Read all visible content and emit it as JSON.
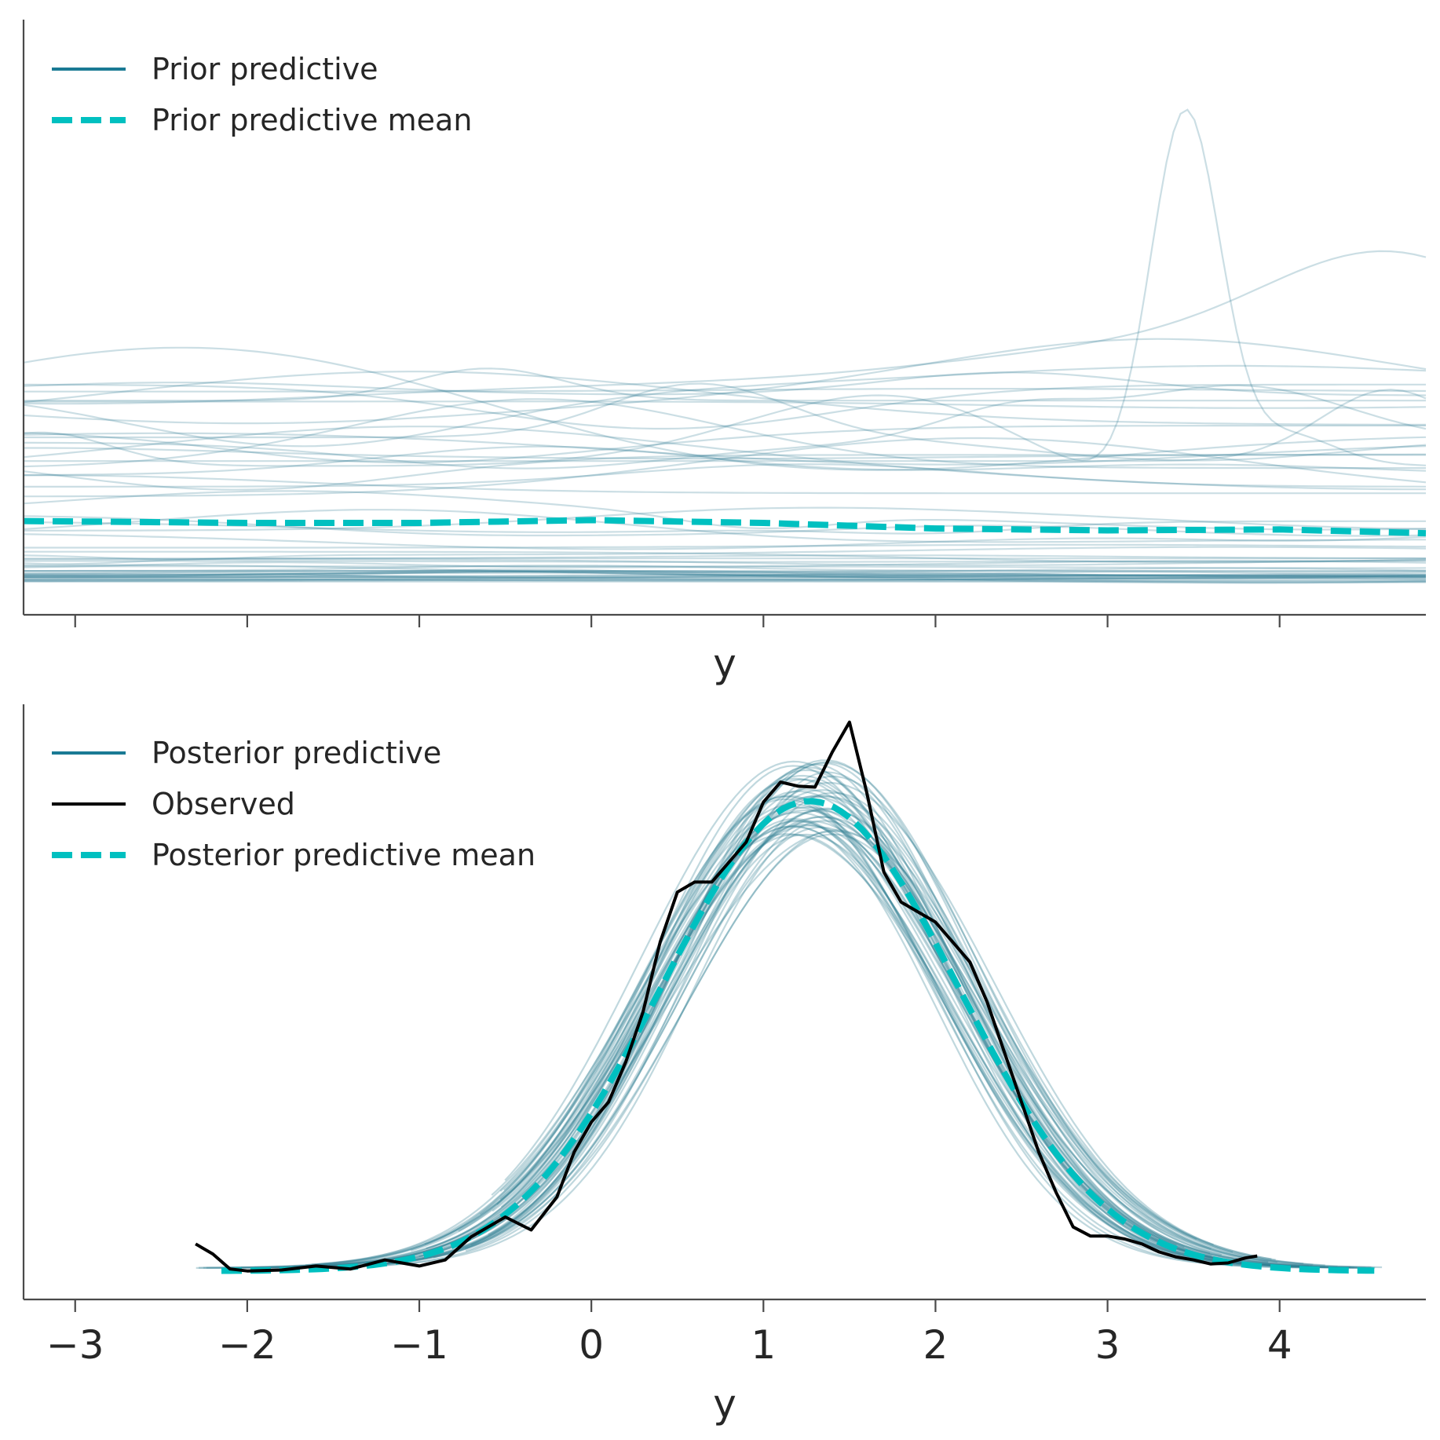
{
  "chart_data": [
    {
      "type": "line",
      "title": "",
      "xlabel": "y",
      "ylabel": "",
      "xlim": [
        -3.3,
        4.85
      ],
      "ylim": [
        0,
        3.0
      ],
      "xticks": [
        -3,
        -2,
        -1,
        0,
        1,
        2,
        3,
        4
      ],
      "show_tick_labels": false,
      "legend": {
        "placement": "top-left",
        "entries": [
          {
            "label": "Prior predictive",
            "style": "solid",
            "color": "#1a7a94"
          },
          {
            "label": "Prior predictive mean",
            "style": "dashed",
            "color": "#00c0c0"
          }
        ]
      },
      "series": [
        {
          "name": "Prior predictive mean",
          "x": [
            -3.3,
            -2,
            -1,
            0,
            1,
            2,
            3,
            4,
            4.85
          ],
          "y": [
            0.355,
            0.345,
            0.345,
            0.36,
            0.345,
            0.315,
            0.305,
            0.31,
            0.29
          ]
        }
      ],
      "samples": {
        "name": "Prior predictive",
        "count": 60,
        "note": "individual prior predictive density draws"
      }
    },
    {
      "type": "line",
      "title": "",
      "xlabel": "y",
      "ylabel": "",
      "xlim": [
        -3.3,
        4.85
      ],
      "ylim": [
        0,
        0.56
      ],
      "xticks": [
        -3,
        -2,
        -1,
        0,
        1,
        2,
        3,
        4
      ],
      "xtick_labels": [
        "−3",
        "−2",
        "−1",
        "0",
        "1",
        "2",
        "3",
        "4"
      ],
      "show_tick_labels": true,
      "legend": {
        "placement": "top-left",
        "entries": [
          {
            "label": "Posterior predictive",
            "style": "solid",
            "color": "#1a7a94"
          },
          {
            "label": "Observed",
            "style": "solid",
            "color": "#000000"
          },
          {
            "label": "Posterior predictive mean",
            "style": "dashed",
            "color": "#00c0c0"
          }
        ]
      },
      "series": [
        {
          "name": "Observed",
          "x": [
            -2.3,
            -2.2,
            -2.1,
            -2.0,
            -1.8,
            -1.6,
            -1.4,
            -1.2,
            -1.0,
            -0.85,
            -0.7,
            -0.5,
            -0.35,
            -0.2,
            -0.1,
            0.0,
            0.1,
            0.2,
            0.3,
            0.4,
            0.5,
            0.6,
            0.7,
            0.8,
            0.9,
            1.0,
            1.1,
            1.2,
            1.3,
            1.4,
            1.5,
            1.6,
            1.7,
            1.8,
            1.9,
            2.0,
            2.1,
            2.2,
            2.3,
            2.4,
            2.5,
            2.6,
            2.7,
            2.8,
            2.9,
            3.0,
            3.1,
            3.2,
            3.3,
            3.4,
            3.5,
            3.6,
            3.7,
            3.8,
            3.87
          ],
          "y": [
            0.028,
            0.018,
            0.003,
            0.001,
            0.002,
            0.006,
            0.003,
            0.012,
            0.006,
            0.012,
            0.035,
            0.055,
            0.042,
            0.075,
            0.12,
            0.15,
            0.17,
            0.21,
            0.26,
            0.33,
            0.38,
            0.39,
            0.39,
            0.41,
            0.43,
            0.47,
            0.49,
            0.486,
            0.485,
            0.52,
            0.55,
            0.48,
            0.4,
            0.37,
            0.36,
            0.35,
            0.33,
            0.31,
            0.27,
            0.22,
            0.17,
            0.12,
            0.08,
            0.045,
            0.036,
            0.036,
            0.033,
            0.028,
            0.02,
            0.015,
            0.012,
            0.008,
            0.009,
            0.014,
            0.016
          ]
        },
        {
          "name": "Posterior predictive mean",
          "mean": 1.27,
          "sd": 0.86,
          "peak": 0.47,
          "x_range": [
            -2.15,
            4.55
          ]
        }
      ],
      "samples": {
        "name": "Posterior predictive",
        "count": 50,
        "note": "individual posterior predictive density draws"
      }
    }
  ]
}
